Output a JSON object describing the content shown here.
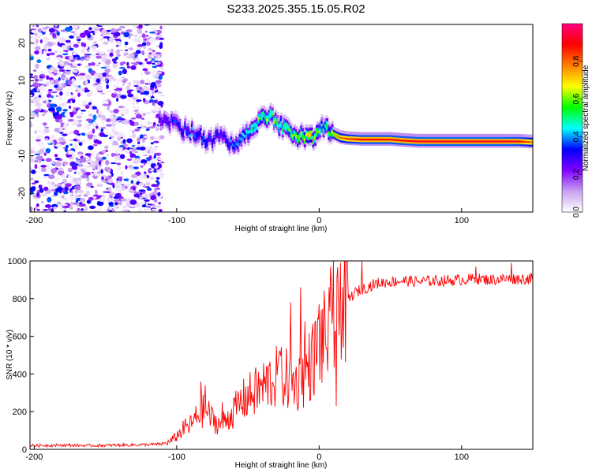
{
  "figure_title": "S233.2025.355.15.05.R02",
  "chart_data": [
    {
      "type": "heatmap",
      "title": "S233.2025.355.15.05.R02",
      "xlabel": "Height of straight line (km)",
      "ylabel": "Frequency (Hz)",
      "xlim": [
        -203,
        150
      ],
      "ylim": [
        -25,
        25
      ],
      "xticks": [
        -200,
        -100,
        0,
        100
      ],
      "xtick_labels": [
        "-200",
        "-100",
        "0",
        "100"
      ],
      "yticks": [
        -20,
        -10,
        0,
        10,
        20
      ],
      "ytick_labels": [
        "-20",
        "-10",
        "0",
        "10",
        "20"
      ],
      "colorbar": {
        "label": "Normalized spectral amplitude",
        "range": [
          0,
          1
        ],
        "ticks": [
          0.0,
          0.2,
          0.4,
          0.6,
          0.8
        ],
        "tick_labels": [
          "0.0",
          "0.2",
          "0.4",
          "0.6",
          "0.8"
        ],
        "colormap": [
          "#ffffff",
          "#c8a0f0",
          "#8000ff",
          "#0000ff",
          "#00ffff",
          "#00ff00",
          "#ffff00",
          "#ff8000",
          "#ff0000",
          "#ff0080"
        ]
      },
      "noise_region": {
        "x_range": [
          -203,
          -110
        ],
        "y_range": [
          -25,
          25
        ],
        "amplitude_range": [
          0.02,
          0.25
        ]
      },
      "ridge": {
        "x": [
          -112,
          -105,
          -100,
          -95,
          -90,
          -85,
          -80,
          -75,
          -70,
          -65,
          -60,
          -55,
          -50,
          -45,
          -40,
          -35,
          -30,
          -25,
          -20,
          -15,
          -10,
          -5,
          0,
          3,
          6,
          10,
          15,
          20,
          30,
          40,
          50,
          60,
          70,
          80,
          90,
          100,
          110,
          120,
          130,
          140,
          150
        ],
        "frequency": [
          -0.5,
          -1,
          -2,
          -3,
          -3.5,
          -4.5,
          -5.5,
          -6,
          -5,
          -6,
          -7,
          -5.5,
          -4,
          -2,
          0,
          0.5,
          -1,
          -2.5,
          -3.5,
          -4.5,
          -5,
          -5.5,
          -4.5,
          -2,
          -3,
          -4,
          -5,
          -5.3,
          -5.5,
          -5.5,
          -5.5,
          -5.8,
          -6,
          -6,
          -6,
          -6,
          -6,
          -6,
          -6,
          -6,
          -6.2
        ],
        "amplitude": [
          0.3,
          0.33,
          0.35,
          0.38,
          0.4,
          0.4,
          0.38,
          0.35,
          0.33,
          0.35,
          0.4,
          0.45,
          0.5,
          0.55,
          0.6,
          0.6,
          0.58,
          0.55,
          0.6,
          0.65,
          0.7,
          0.75,
          0.6,
          0.5,
          0.55,
          0.7,
          0.8,
          0.85,
          0.9,
          0.9,
          0.9,
          0.9,
          0.92,
          0.92,
          0.92,
          0.92,
          0.92,
          0.92,
          0.92,
          0.9,
          0.8
        ]
      }
    },
    {
      "type": "line",
      "xlabel": "Height of straight line (km)",
      "ylabel": "SNR (10 * v/v)",
      "xlim": [
        -203,
        150
      ],
      "ylim": [
        0,
        1000
      ],
      "xticks": [
        -200,
        -100,
        0,
        100
      ],
      "xtick_labels": [
        "-200",
        "-100",
        "0",
        "100"
      ],
      "yticks": [
        0,
        200,
        400,
        600,
        800,
        1000
      ],
      "ytick_labels": [
        "0",
        "200",
        "400",
        "600",
        "800",
        "1000"
      ],
      "series": [
        {
          "name": "SNR",
          "color": "#ff0000",
          "x": [
            -203,
            -180,
            -160,
            -140,
            -120,
            -110,
            -105,
            -100,
            -95,
            -90,
            -85,
            -80,
            -75,
            -70,
            -65,
            -60,
            -55,
            -50,
            -45,
            -40,
            -35,
            -30,
            -25,
            -20,
            -15,
            -10,
            -5,
            0,
            5,
            10,
            15,
            20,
            25,
            30,
            40,
            50,
            60,
            70,
            80,
            90,
            100,
            110,
            120,
            130,
            140,
            150
          ],
          "y": [
            20,
            22,
            20,
            22,
            25,
            28,
            40,
            70,
            110,
            130,
            180,
            210,
            160,
            130,
            160,
            200,
            250,
            280,
            300,
            330,
            360,
            380,
            380,
            360,
            350,
            400,
            470,
            550,
            600,
            620,
            700,
            790,
            830,
            850,
            880,
            890,
            895,
            890,
            895,
            895,
            900,
            905,
            900,
            905,
            905,
            905
          ],
          "spikes": [
            [
              -83,
              360
            ],
            [
              -80,
              340
            ],
            [
              -68,
              250
            ],
            [
              -45,
              400
            ],
            [
              -28,
              520
            ],
            [
              -20,
              780
            ],
            [
              -13,
              860
            ],
            [
              -10,
              680
            ],
            [
              0,
              770
            ],
            [
              8,
              970
            ],
            [
              10,
              1000
            ],
            [
              12,
              230
            ],
            [
              15,
              990
            ],
            [
              20,
              940
            ],
            [
              30,
              1000
            ],
            [
              110,
              970
            ],
            [
              135,
              990
            ]
          ]
        }
      ]
    }
  ]
}
